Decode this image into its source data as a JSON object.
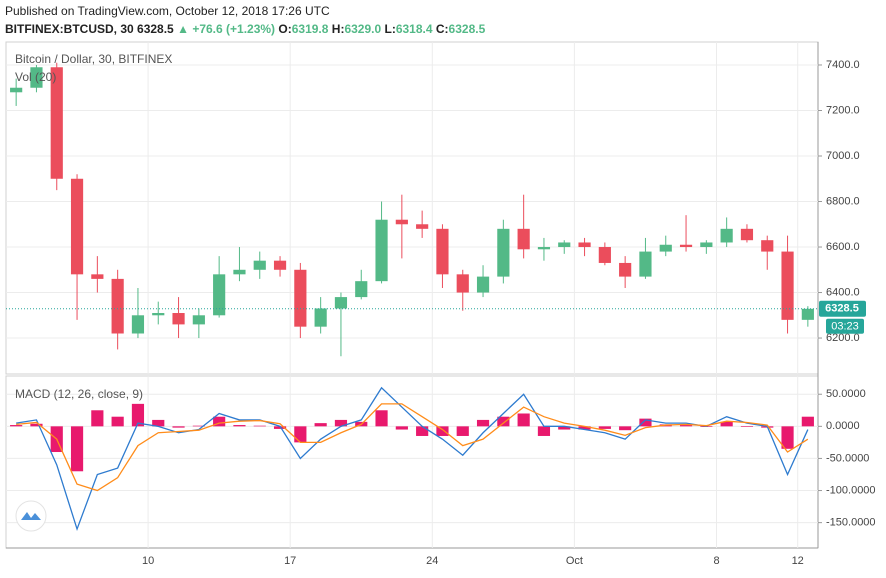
{
  "header": {
    "published": "Published on TradingView.com, October 12, 2018 17:26 UTC",
    "symbol": "BITFINEX:BTCUSD, 30",
    "last": "6328.5",
    "arrow": "▲",
    "change": "+76.6 (+1.23%)",
    "ohlc": [
      {
        "label": "O:",
        "value": "6319.8"
      },
      {
        "label": "H:",
        "value": "6329.0"
      },
      {
        "label": "L:",
        "value": "6318.4"
      },
      {
        "label": "C:",
        "value": "6328.5"
      }
    ]
  },
  "chart_data": [
    {
      "type": "candlestick",
      "title": "Bitcoin / Dollar, 30, BITFINEX",
      "volume_label": "Vol (20)",
      "categories": [
        null,
        null,
        null,
        null,
        null,
        null,
        null,
        "10",
        null,
        null,
        null,
        null,
        null,
        null,
        "17",
        null,
        null,
        null,
        null,
        null,
        null,
        "24",
        null,
        null,
        null,
        null,
        null,
        null,
        "Oct",
        null,
        null,
        null,
        null,
        null,
        null,
        "8",
        null,
        null,
        null,
        "12"
      ],
      "open": [
        7280,
        7300,
        7390,
        6900,
        6480,
        6460,
        6220,
        6300,
        6310,
        6260,
        6300,
        6480,
        6500,
        6540,
        6500,
        6250,
        6330,
        6380,
        6450,
        6720,
        6700,
        6680,
        6480,
        6400,
        6470,
        6680,
        6590,
        6600,
        6620,
        6600,
        6530,
        6470,
        6580,
        6610,
        6600,
        6620,
        6680,
        6630,
        6580,
        6280
      ],
      "high": [
        7340,
        7400,
        7410,
        6920,
        6560,
        6500,
        6420,
        6360,
        6380,
        6330,
        6560,
        6600,
        6580,
        6560,
        6530,
        6380,
        6400,
        6500,
        6800,
        6830,
        6760,
        6700,
        6500,
        6520,
        6720,
        6830,
        6640,
        6630,
        6640,
        6620,
        6560,
        6640,
        6650,
        6740,
        6630,
        6730,
        6700,
        6650,
        6650,
        6340
      ],
      "low": [
        7220,
        7280,
        6850,
        6280,
        6400,
        6150,
        6200,
        6260,
        6200,
        6200,
        6290,
        6450,
        6460,
        6470,
        6200,
        6220,
        6120,
        6370,
        6440,
        6550,
        6640,
        6420,
        6320,
        6380,
        6440,
        6550,
        6540,
        6570,
        6560,
        6520,
        6420,
        6460,
        6560,
        6580,
        6570,
        6600,
        6620,
        6500,
        6220,
        6250
      ],
      "close": [
        7300,
        7390,
        6900,
        6480,
        6460,
        6220,
        6300,
        6310,
        6260,
        6300,
        6480,
        6500,
        6540,
        6500,
        6250,
        6330,
        6380,
        6450,
        6720,
        6700,
        6680,
        6480,
        6400,
        6470,
        6680,
        6590,
        6600,
        6620,
        6600,
        6530,
        6470,
        6580,
        6610,
        6600,
        6620,
        6680,
        6630,
        6580,
        6280,
        6328.5
      ],
      "up_color": "#53b987",
      "down_color": "#eb4d5c",
      "ylim": [
        6042,
        7501
      ],
      "yticks": [
        {
          "value": 6200,
          "label": "6200.0"
        },
        {
          "value": 6400,
          "label": "6400.0"
        },
        {
          "value": 6600,
          "label": "6600.0"
        },
        {
          "value": 6800,
          "label": "6800.0"
        },
        {
          "value": 7000,
          "label": "7000.0"
        },
        {
          "value": 7200,
          "label": "7200.0"
        },
        {
          "value": 7400,
          "label": "7400.0"
        }
      ],
      "grid": true,
      "last_price": 6328.5,
      "last_color": "#26a69a",
      "countdown": "03:23"
    },
    {
      "type": "macd",
      "title": "MACD (12, 26, close, 9)",
      "series": [
        {
          "name": "MACD",
          "color": "#2e7bcf",
          "values": [
            5,
            10,
            -60,
            -160,
            -75,
            -65,
            5,
            0,
            -10,
            -5,
            20,
            10,
            10,
            0,
            -50,
            -20,
            0,
            10,
            60,
            30,
            0,
            -20,
            -45,
            -10,
            20,
            50,
            0,
            0,
            -5,
            -10,
            -20,
            10,
            5,
            5,
            0,
            15,
            5,
            0,
            -75,
            -5
          ]
        },
        {
          "name": "Signal",
          "color": "#ff8c1a",
          "values": [
            3,
            6,
            -20,
            -90,
            -100,
            -80,
            -30,
            -10,
            -8,
            -6,
            5,
            8,
            9,
            4,
            -25,
            -25,
            -10,
            3,
            35,
            35,
            15,
            -5,
            -30,
            -20,
            5,
            30,
            15,
            5,
            0,
            -6,
            -14,
            -2,
            2,
            3,
            1,
            8,
            6,
            2,
            -40,
            -20
          ]
        }
      ],
      "histogram": {
        "color": "#e8196d",
        "values": [
          2,
          4,
          -40,
          -70,
          25,
          15,
          35,
          10,
          -2,
          1,
          15,
          2,
          1,
          -4,
          -25,
          5,
          10,
          7,
          25,
          -5,
          -15,
          -15,
          -15,
          10,
          15,
          20,
          -15,
          -5,
          -5,
          -4,
          -6,
          12,
          3,
          2,
          -1,
          7,
          -1,
          -2,
          -35,
          15
        ]
      },
      "ylim": [
        -189.5,
        78.4
      ],
      "yticks": [
        {
          "value": 50,
          "label": "50.0000"
        },
        {
          "value": 0,
          "label": "0.0000"
        },
        {
          "value": -50,
          "label": "-50.0000"
        },
        {
          "value": -100,
          "label": "-100.0000"
        },
        {
          "value": -150,
          "label": "-150.0000"
        }
      ],
      "grid": true
    }
  ]
}
